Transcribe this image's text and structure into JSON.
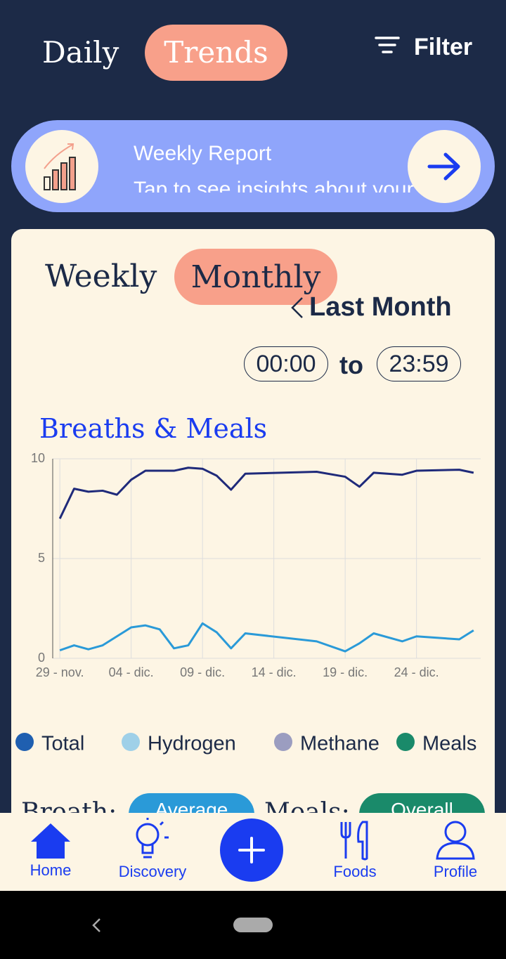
{
  "header": {
    "tabs": [
      "Daily",
      "Trends"
    ],
    "filter": "Filter"
  },
  "report": {
    "title": "Weekly Report",
    "subtitle": "Tap to see insights about your"
  },
  "card": {
    "tabs": [
      "Weekly",
      "Monthly"
    ],
    "period": "Last Month",
    "time_from": "00:00",
    "time_sep": "to",
    "time_to": "23:59",
    "breath_label": "Breath:",
    "breath_button": "Average",
    "meals_label": "Meals:",
    "meals_button": "Overall"
  },
  "chart_data": {
    "type": "line",
    "title": "Breaths & Meals",
    "x": [
      0,
      1,
      2,
      3,
      4,
      5,
      6,
      7,
      8,
      9,
      10,
      11,
      12,
      13,
      18,
      20,
      21,
      22,
      24,
      25,
      28,
      29
    ],
    "series": [
      {
        "name": "Total",
        "color": "#1f2a7a",
        "values": [
          7.0,
          8.5,
          8.35,
          8.4,
          8.2,
          8.95,
          9.4,
          9.4,
          9.4,
          9.55,
          9.5,
          9.15,
          8.45,
          9.25,
          9.35,
          9.1,
          8.6,
          9.3,
          9.2,
          9.4,
          9.45,
          9.3
        ]
      },
      {
        "name": "Hydrogen",
        "color": "#2a9ad8",
        "values": [
          0.4,
          0.65,
          0.45,
          0.65,
          1.1,
          1.55,
          1.65,
          1.45,
          0.5,
          0.65,
          1.75,
          1.3,
          0.5,
          1.25,
          0.85,
          0.35,
          0.75,
          1.25,
          0.85,
          1.1,
          0.95,
          1.4
        ]
      }
    ],
    "legend": [
      {
        "name": "Total",
        "color": "#1f5fb0"
      },
      {
        "name": "Hydrogen",
        "color": "#9fd0e8"
      },
      {
        "name": "Methane",
        "color": "#9b9dc0"
      },
      {
        "name": "Meals",
        "color": "#1a8a6a"
      }
    ],
    "xlim": [
      -0.5,
      29.5
    ],
    "xticks": [
      {
        "value": 0,
        "label": "29 - nov."
      },
      {
        "value": 5,
        "label": "04 - dic."
      },
      {
        "value": 10,
        "label": "09 - dic."
      },
      {
        "value": 15,
        "label": "14 - dic."
      },
      {
        "value": 20,
        "label": "19 - dic."
      },
      {
        "value": 25,
        "label": "24 - dic."
      }
    ],
    "ylim": [
      0,
      10
    ],
    "yticks": [
      0,
      5,
      10
    ],
    "grid": true
  },
  "nav": [
    "Home",
    "Discovery",
    "Foods",
    "Profile"
  ]
}
